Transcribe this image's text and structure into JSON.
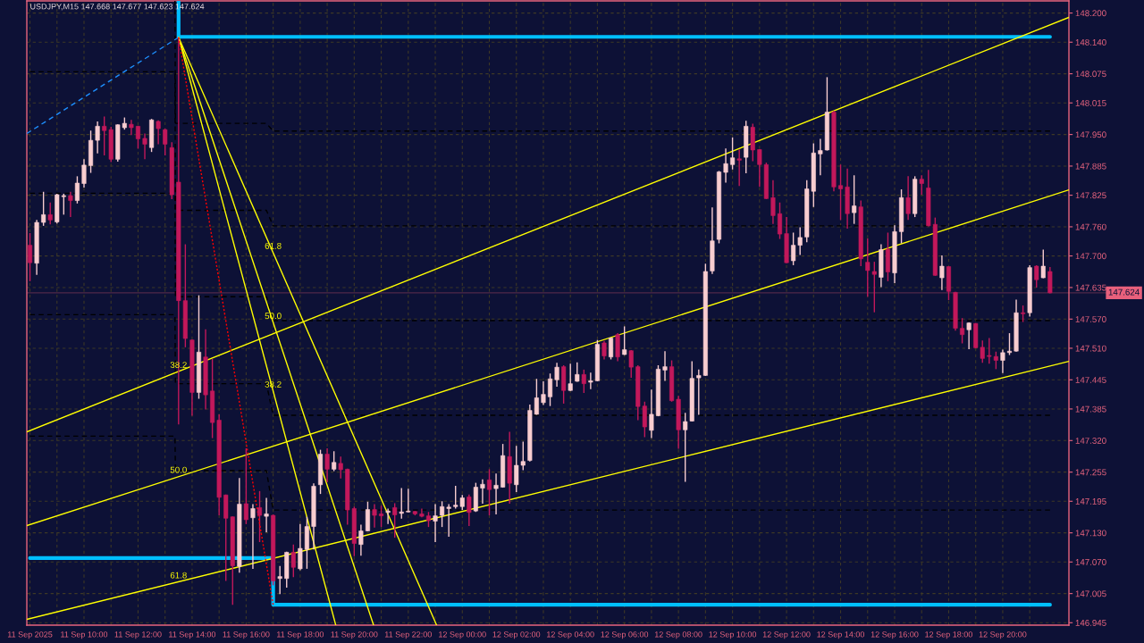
{
  "chart_data": {
    "type": "candlestick",
    "title": "USDJPY,M15 147.668 147.677 147.623 147.624",
    "x": [
      "2025-09-11T08:00",
      "2025-09-11T08:15",
      "2025-09-11T08:30",
      "2025-09-11T08:45",
      "2025-09-11T09:00",
      "2025-09-11T09:15",
      "2025-09-11T09:30",
      "2025-09-11T09:45",
      "2025-09-11T10:00",
      "2025-09-11T10:15",
      "2025-09-11T10:30",
      "2025-09-11T10:45",
      "2025-09-11T11:00",
      "2025-09-11T11:15",
      "2025-09-11T11:30",
      "2025-09-11T11:45",
      "2025-09-11T12:00",
      "2025-09-11T12:15",
      "2025-09-11T12:30",
      "2025-09-11T12:45",
      "2025-09-11T13:00",
      "2025-09-11T13:15",
      "2025-09-11T13:30",
      "2025-09-11T13:45",
      "2025-09-11T14:00",
      "2025-09-11T14:15",
      "2025-09-11T14:30",
      "2025-09-11T14:45",
      "2025-09-11T15:00",
      "2025-09-11T15:15",
      "2025-09-11T15:30",
      "2025-09-11T15:45",
      "2025-09-11T16:00",
      "2025-09-11T16:15",
      "2025-09-11T16:30",
      "2025-09-11T16:45",
      "2025-09-11T17:00",
      "2025-09-11T17:15",
      "2025-09-11T17:30",
      "2025-09-11T17:45",
      "2025-09-11T18:00",
      "2025-09-11T18:15",
      "2025-09-11T18:30",
      "2025-09-11T18:45",
      "2025-09-11T19:00",
      "2025-09-11T19:15",
      "2025-09-11T19:30",
      "2025-09-11T19:45",
      "2025-09-11T20:00",
      "2025-09-11T20:15",
      "2025-09-11T20:30",
      "2025-09-11T20:45",
      "2025-09-11T21:00",
      "2025-09-11T21:15",
      "2025-09-11T21:30",
      "2025-09-11T21:45",
      "2025-09-11T22:00",
      "2025-09-11T22:15",
      "2025-09-11T22:30",
      "2025-09-11T22:45",
      "2025-09-11T23:00",
      "2025-09-11T23:15",
      "2025-09-11T23:30",
      "2025-09-11T23:45",
      "2025-09-12T00:00",
      "2025-09-12T00:15",
      "2025-09-12T00:30",
      "2025-09-12T00:45",
      "2025-09-12T01:00",
      "2025-09-12T01:15",
      "2025-09-12T01:30",
      "2025-09-12T01:45",
      "2025-09-12T02:00",
      "2025-09-12T02:15",
      "2025-09-12T02:30",
      "2025-09-12T02:45",
      "2025-09-12T03:00",
      "2025-09-12T03:15",
      "2025-09-12T03:30",
      "2025-09-12T03:45",
      "2025-09-12T04:00",
      "2025-09-12T04:15",
      "2025-09-12T04:30",
      "2025-09-12T04:45",
      "2025-09-12T05:00",
      "2025-09-12T05:15",
      "2025-09-12T05:30",
      "2025-09-12T05:45",
      "2025-09-12T06:00",
      "2025-09-12T06:15",
      "2025-09-12T06:30",
      "2025-09-12T06:45",
      "2025-09-12T07:00",
      "2025-09-12T07:15",
      "2025-09-12T07:30",
      "2025-09-12T07:45",
      "2025-09-12T08:00",
      "2025-09-12T08:15",
      "2025-09-12T08:30",
      "2025-09-12T08:45",
      "2025-09-12T09:00",
      "2025-09-12T09:15",
      "2025-09-12T09:30",
      "2025-09-12T09:45",
      "2025-09-12T10:00",
      "2025-09-12T10:15",
      "2025-09-12T10:30",
      "2025-09-12T10:45",
      "2025-09-12T11:00",
      "2025-09-12T11:15",
      "2025-09-12T11:30",
      "2025-09-12T11:45",
      "2025-09-12T12:00",
      "2025-09-12T12:15",
      "2025-09-12T12:30",
      "2025-09-12T12:45",
      "2025-09-12T13:00",
      "2025-09-12T13:15",
      "2025-09-12T13:30",
      "2025-09-12T13:45",
      "2025-09-12T14:00",
      "2025-09-12T14:15",
      "2025-09-12T14:30",
      "2025-09-12T14:45",
      "2025-09-12T15:00",
      "2025-09-12T15:15",
      "2025-09-12T15:30",
      "2025-09-12T15:45",
      "2025-09-12T16:00",
      "2025-09-12T16:15",
      "2025-09-12T16:30",
      "2025-09-12T16:45",
      "2025-09-12T17:00",
      "2025-09-12T17:15",
      "2025-09-12T17:30",
      "2025-09-12T17:45",
      "2025-09-12T18:00",
      "2025-09-12T18:15",
      "2025-09-12T18:30",
      "2025-09-12T18:45",
      "2025-09-12T19:00",
      "2025-09-12T19:15",
      "2025-09-12T19:30",
      "2025-09-12T19:45",
      "2025-09-12T20:00",
      "2025-09-12T20:15",
      "2025-09-12T20:30",
      "2025-09-12T20:45",
      "2025-09-12T21:00",
      "2025-09-12T21:15",
      "2025-09-12T21:30",
      "2025-09-12T21:45"
    ],
    "ohlc": [
      [
        147.722,
        147.747,
        147.648,
        147.686
      ],
      [
        147.685,
        147.774,
        147.661,
        147.769
      ],
      [
        147.769,
        147.832,
        147.762,
        147.785
      ],
      [
        147.785,
        147.81,
        147.765,
        147.774
      ],
      [
        147.77,
        147.828,
        147.767,
        147.826
      ],
      [
        147.822,
        147.828,
        147.785,
        147.824
      ],
      [
        147.824,
        147.832,
        147.78,
        147.814
      ],
      [
        147.814,
        147.864,
        147.808,
        147.85
      ],
      [
        147.849,
        147.899,
        147.841,
        147.887
      ],
      [
        147.886,
        147.958,
        147.871,
        147.938
      ],
      [
        147.938,
        147.977,
        147.911,
        147.967
      ],
      [
        147.967,
        147.987,
        147.907,
        147.958
      ],
      [
        147.96,
        147.966,
        147.893,
        147.899
      ],
      [
        147.899,
        147.971,
        147.894,
        147.97
      ],
      [
        147.964,
        147.985,
        147.96,
        147.973
      ],
      [
        147.971,
        147.98,
        147.949,
        147.964
      ],
      [
        147.967,
        147.968,
        147.921,
        147.941
      ],
      [
        147.942,
        147.952,
        147.899,
        147.93
      ],
      [
        147.923,
        147.982,
        147.914,
        147.98
      ],
      [
        147.977,
        147.979,
        147.93,
        147.962
      ],
      [
        147.96,
        147.962,
        147.907,
        147.93
      ],
      [
        147.923,
        147.934,
        147.817,
        147.826
      ],
      [
        147.852,
        148.15,
        147.353,
        147.608
      ],
      [
        147.608,
        147.724,
        147.512,
        147.53
      ],
      [
        147.527,
        147.528,
        147.371,
        147.419
      ],
      [
        147.419,
        147.619,
        147.406,
        147.502
      ],
      [
        147.492,
        147.549,
        147.384,
        147.414
      ],
      [
        147.422,
        147.488,
        147.325,
        147.357
      ],
      [
        147.362,
        147.374,
        147.166,
        147.203
      ],
      [
        147.208,
        147.209,
        147.031,
        147.16
      ],
      [
        147.163,
        147.164,
        146.982,
        147.062
      ],
      [
        147.061,
        147.243,
        147.048,
        147.189
      ],
      [
        147.19,
        147.304,
        147.148,
        147.157
      ],
      [
        147.161,
        147.189,
        147.056,
        147.18
      ],
      [
        147.182,
        147.216,
        147.111,
        147.166
      ],
      [
        147.164,
        147.202,
        147.131,
        147.169
      ],
      [
        147.166,
        147.168,
        147.022,
        147.031
      ],
      [
        147.036,
        147.062,
        147.004,
        147.04
      ],
      [
        147.036,
        147.091,
        147.017,
        147.09
      ],
      [
        147.09,
        147.106,
        147.039,
        147.059
      ],
      [
        147.056,
        147.148,
        147.053,
        147.098
      ],
      [
        147.096,
        147.163,
        147.056,
        147.143
      ],
      [
        147.143,
        147.232,
        147.096,
        147.226
      ],
      [
        147.229,
        147.301,
        147.21,
        147.292
      ],
      [
        147.292,
        147.304,
        147.234,
        147.261
      ],
      [
        147.261,
        147.298,
        147.257,
        147.275
      ],
      [
        147.273,
        147.287,
        147.242,
        147.26
      ],
      [
        147.261,
        147.262,
        147.147,
        147.177
      ],
      [
        147.18,
        147.184,
        147.082,
        147.108
      ],
      [
        147.106,
        147.147,
        147.083,
        147.134
      ],
      [
        147.134,
        147.194,
        147.133,
        147.178
      ],
      [
        147.178,
        147.189,
        147.141,
        147.166
      ],
      [
        147.169,
        147.186,
        147.142,
        147.165
      ],
      [
        147.172,
        147.18,
        147.148,
        147.175
      ],
      [
        147.182,
        147.191,
        147.12,
        147.167
      ],
      [
        147.17,
        147.222,
        147.159,
        147.173
      ],
      [
        147.173,
        147.221,
        147.172,
        147.174
      ],
      [
        147.174,
        147.175,
        147.166,
        147.169
      ],
      [
        147.169,
        147.18,
        147.162,
        147.164
      ],
      [
        147.165,
        147.173,
        147.142,
        147.155
      ],
      [
        147.154,
        147.189,
        147.111,
        147.165
      ],
      [
        147.166,
        147.195,
        147.142,
        147.184
      ],
      [
        147.18,
        147.189,
        147.122,
        147.183
      ],
      [
        147.184,
        147.227,
        147.18,
        147.187
      ],
      [
        147.184,
        147.208,
        147.177,
        147.202
      ],
      [
        147.204,
        147.209,
        147.144,
        147.172
      ],
      [
        147.175,
        147.233,
        147.173,
        147.224
      ],
      [
        147.222,
        147.24,
        147.19,
        147.23
      ],
      [
        147.239,
        147.261,
        147.166,
        147.219
      ],
      [
        147.221,
        147.252,
        147.168,
        147.228
      ],
      [
        147.224,
        147.313,
        147.223,
        147.289
      ],
      [
        147.287,
        147.338,
        147.19,
        147.232
      ],
      [
        147.229,
        147.309,
        147.214,
        147.269
      ],
      [
        147.269,
        147.318,
        147.259,
        147.277
      ],
      [
        147.279,
        147.394,
        147.277,
        147.382
      ],
      [
        147.374,
        147.447,
        147.373,
        147.408
      ],
      [
        147.398,
        147.442,
        147.393,
        147.415
      ],
      [
        147.41,
        147.458,
        147.391,
        147.447
      ],
      [
        147.445,
        147.48,
        147.431,
        147.471
      ],
      [
        147.472,
        147.475,
        147.396,
        147.423
      ],
      [
        147.423,
        147.478,
        147.422,
        147.437
      ],
      [
        147.442,
        147.481,
        147.441,
        147.456
      ],
      [
        147.456,
        147.466,
        147.418,
        147.437
      ],
      [
        147.44,
        147.46,
        147.426,
        147.443
      ],
      [
        147.443,
        147.527,
        147.442,
        147.518
      ],
      [
        147.521,
        147.525,
        147.487,
        147.494
      ],
      [
        147.492,
        147.532,
        147.487,
        147.531
      ],
      [
        147.538,
        147.541,
        147.483,
        147.492
      ],
      [
        147.497,
        147.555,
        147.496,
        147.507
      ],
      [
        147.505,
        147.506,
        147.449,
        147.471
      ],
      [
        147.472,
        147.475,
        147.362,
        147.39
      ],
      [
        147.391,
        147.4,
        147.327,
        147.348
      ],
      [
        147.341,
        147.425,
        147.325,
        147.374
      ],
      [
        147.371,
        147.475,
        147.37,
        147.467
      ],
      [
        147.465,
        147.504,
        147.443,
        147.472
      ],
      [
        147.472,
        147.485,
        147.4,
        147.402
      ],
      [
        147.405,
        147.412,
        147.303,
        147.342
      ],
      [
        147.342,
        147.377,
        147.235,
        147.359
      ],
      [
        147.36,
        147.483,
        147.359,
        147.448
      ],
      [
        147.449,
        147.466,
        147.373,
        147.454
      ],
      [
        147.454,
        147.684,
        147.453,
        147.668
      ],
      [
        147.669,
        147.8,
        147.663,
        147.731
      ],
      [
        147.734,
        147.875,
        147.726,
        147.873
      ],
      [
        147.872,
        147.921,
        147.851,
        147.89
      ],
      [
        147.888,
        147.944,
        147.878,
        147.902
      ],
      [
        147.9,
        147.919,
        147.844,
        147.897
      ],
      [
        147.903,
        147.978,
        147.87,
        147.967
      ],
      [
        147.965,
        147.972,
        147.895,
        147.918
      ],
      [
        147.919,
        147.92,
        147.842,
        147.888
      ],
      [
        147.888,
        147.892,
        147.817,
        147.818
      ],
      [
        147.82,
        147.856,
        147.766,
        147.783
      ],
      [
        147.787,
        147.81,
        147.735,
        147.745
      ],
      [
        147.746,
        147.78,
        147.685,
        147.686
      ],
      [
        147.69,
        147.748,
        147.681,
        147.722
      ],
      [
        147.722,
        147.759,
        147.702,
        147.738
      ],
      [
        147.739,
        147.856,
        147.728,
        147.838
      ],
      [
        147.833,
        147.932,
        147.801,
        147.912
      ],
      [
        147.91,
        147.941,
        147.866,
        147.917
      ],
      [
        147.918,
        148.068,
        147.917,
        147.996
      ],
      [
        147.996,
        147.999,
        147.833,
        147.842
      ],
      [
        147.845,
        147.888,
        147.774,
        147.838
      ],
      [
        147.842,
        147.88,
        147.756,
        147.787
      ],
      [
        147.789,
        147.866,
        147.766,
        147.803
      ],
      [
        147.801,
        147.814,
        147.679,
        147.694
      ],
      [
        147.687,
        147.736,
        147.616,
        147.67
      ],
      [
        147.668,
        147.688,
        147.584,
        147.662
      ],
      [
        147.656,
        147.724,
        147.636,
        147.713
      ],
      [
        147.714,
        147.748,
        147.648,
        147.667
      ],
      [
        147.665,
        147.763,
        147.644,
        147.75
      ],
      [
        147.75,
        147.837,
        147.726,
        147.82
      ],
      [
        147.82,
        147.864,
        147.774,
        147.787
      ],
      [
        147.787,
        147.864,
        147.78,
        147.858
      ],
      [
        147.858,
        147.866,
        147.826,
        147.849
      ],
      [
        147.84,
        147.877,
        147.761,
        147.762
      ],
      [
        147.765,
        147.779,
        147.659,
        147.66
      ],
      [
        147.655,
        147.701,
        147.63,
        147.679
      ],
      [
        147.678,
        147.679,
        147.609,
        147.627
      ],
      [
        147.625,
        147.626,
        147.546,
        147.551
      ],
      [
        147.551,
        147.572,
        147.52,
        147.538
      ],
      [
        147.548,
        147.563,
        147.508,
        147.562
      ],
      [
        147.561,
        147.562,
        147.51,
        147.511
      ],
      [
        147.512,
        147.526,
        147.48,
        147.489
      ],
      [
        147.495,
        147.531,
        147.478,
        147.493
      ],
      [
        147.493,
        147.503,
        147.467,
        147.485
      ],
      [
        147.485,
        147.507,
        147.459,
        147.501
      ],
      [
        147.501,
        147.541,
        147.496,
        147.504
      ],
      [
        147.504,
        147.61,
        147.503,
        147.583
      ],
      [
        147.583,
        147.598,
        147.564,
        147.581
      ],
      [
        147.583,
        147.681,
        147.575,
        147.676
      ],
      [
        147.679,
        147.681,
        147.635,
        147.651
      ],
      [
        147.655,
        147.713,
        147.654,
        147.679
      ],
      [
        147.668,
        147.677,
        147.623,
        147.624
      ]
    ],
    "colors": [
      "#c2185b",
      "#f8cdd0",
      "#f8cdd0",
      "#c2185b",
      "#f8cdd0",
      "#f8cdd0",
      "#c2185b",
      "#f8cdd0",
      "#f8cdd0",
      "#f8cdd0",
      "#f8cdd0",
      "#c2185b",
      "#c2185b",
      "#f8cdd0",
      "#f8cdd0",
      "#c2185b",
      "#c2185b",
      "#c2185b",
      "#f8cdd0",
      "#c2185b",
      "#c2185b",
      "#c2185b",
      "#c2185b",
      "#c2185b",
      "#c2185b",
      "#f8cdd0",
      "#c2185b",
      "#c2185b",
      "#c2185b",
      "#c2185b",
      "#c2185b",
      "#f8cdd0",
      "#c2185b",
      "#f8cdd0",
      "#c2185b",
      "#f8cdd0",
      "#c2185b",
      "#f8cdd0",
      "#f8cdd0",
      "#c2185b",
      "#f8cdd0",
      "#f8cdd0",
      "#f8cdd0",
      "#f8cdd0",
      "#c2185b",
      "#f8cdd0",
      "#c2185b",
      "#c2185b",
      "#c2185b",
      "#f8cdd0",
      "#f8cdd0",
      "#c2185b",
      "#c2185b",
      "#f8cdd0",
      "#c2185b",
      "#f8cdd0",
      "#f8cdd0",
      "#c2185b",
      "#c2185b",
      "#c2185b",
      "#f8cdd0",
      "#f8cdd0",
      "#f8cdd0",
      "#f8cdd0",
      "#f8cdd0",
      "#c2185b",
      "#f8cdd0",
      "#f8cdd0",
      "#c2185b",
      "#f8cdd0",
      "#f8cdd0",
      "#c2185b",
      "#f8cdd0",
      "#f8cdd0",
      "#f8cdd0",
      "#f8cdd0",
      "#f8cdd0",
      "#f8cdd0",
      "#f8cdd0",
      "#c2185b",
      "#f8cdd0",
      "#f8cdd0",
      "#c2185b",
      "#f8cdd0",
      "#f8cdd0",
      "#c2185b",
      "#f8cdd0",
      "#c2185b",
      "#f8cdd0",
      "#c2185b",
      "#c2185b",
      "#c2185b",
      "#f8cdd0",
      "#f8cdd0",
      "#f8cdd0",
      "#c2185b",
      "#c2185b",
      "#f8cdd0",
      "#f8cdd0",
      "#f8cdd0",
      "#f8cdd0",
      "#f8cdd0",
      "#f8cdd0",
      "#f8cdd0",
      "#f8cdd0",
      "#c2185b",
      "#f8cdd0",
      "#c2185b",
      "#c2185b",
      "#c2185b",
      "#c2185b",
      "#c2185b",
      "#c2185b",
      "#f8cdd0",
      "#f8cdd0",
      "#f8cdd0",
      "#f8cdd0",
      "#f8cdd0",
      "#f8cdd0",
      "#c2185b",
      "#c2185b",
      "#c2185b",
      "#f8cdd0",
      "#c2185b",
      "#c2185b",
      "#c2185b",
      "#f8cdd0",
      "#c2185b",
      "#f8cdd0",
      "#f8cdd0",
      "#c2185b",
      "#f8cdd0",
      "#c2185b",
      "#c2185b",
      "#c2185b",
      "#f8cdd0",
      "#c2185b",
      "#c2185b",
      "#c2185b",
      "#f8cdd0",
      "#c2185b",
      "#c2185b",
      "#c2185b",
      "#c2185b",
      "#f8cdd0",
      "#f8cdd0",
      "#f8cdd0",
      "#c2185b",
      "#f8cdd0",
      "#c2185b",
      "#f8cdd0",
      "#c2185b"
    ],
    "series": [
      {
        "type": "step",
        "color": "#00bfff",
        "line_style": "solid",
        "x": [
          "2025-09-11T13:30",
          "2025-09-11T13:30",
          "2025-09-12T21:45"
        ],
        "values": [
          148.225,
          148.151,
          148.151
        ]
      },
      {
        "type": "step",
        "color": "#00bfff",
        "line_style": "solid",
        "x": [
          "2025-09-11T08:00",
          "2025-09-11T17:00",
          "2025-09-12T21:45"
        ],
        "values": [
          147.078,
          146.982,
          146.982
        ]
      },
      {
        "type": "line",
        "color": "#000000",
        "line_style": "dashed",
        "x": [
          "2025-09-11T08:00",
          "2025-09-11T13:22",
          "2025-09-11T13:23",
          "2025-09-11T16:45",
          "2025-09-11T17:00",
          "2025-09-12T21:45"
        ],
        "values": [
          147.329,
          147.329,
          147.258,
          147.258,
          147.177,
          147.177
        ]
      },
      {
        "type": "line",
        "color": "#000000",
        "line_style": "dashed",
        "x": [
          "2025-09-11T08:00",
          "2025-09-11T13:22",
          "2025-09-11T13:23",
          "2025-09-11T16:45",
          "2025-09-11T17:00",
          "2025-09-12T21:45"
        ],
        "values": [
          147.579,
          147.579,
          147.437,
          147.437,
          147.372,
          147.372
        ]
      },
      {
        "type": "line",
        "color": "#000000",
        "line_style": "dashed",
        "x": [
          "2025-09-11T08:00",
          "2025-09-11T13:22",
          "2025-09-11T13:23",
          "2025-09-11T16:45",
          "2025-09-11T17:00",
          "2025-09-12T21:45"
        ],
        "values": [
          147.829,
          147.829,
          147.616,
          147.616,
          147.567,
          147.567
        ]
      },
      {
        "type": "line",
        "color": "#000000",
        "line_style": "dashed",
        "x": [
          "2025-09-11T08:00",
          "2025-09-11T13:22",
          "2025-09-11T13:23",
          "2025-09-11T16:45",
          "2025-09-11T17:00",
          "2025-09-12T21:45"
        ],
        "values": [
          148.079,
          148.079,
          147.794,
          147.794,
          147.762,
          147.762
        ]
      },
      {
        "type": "line",
        "color": "#000000",
        "line_style": "dashed",
        "x": [
          "2025-09-11T13:22",
          "2025-09-11T13:23",
          "2025-09-11T16:45",
          "2025-09-11T17:00",
          "2025-09-12T21:45"
        ],
        "values": [
          148.225,
          147.973,
          147.973,
          147.957,
          147.957
        ]
      },
      {
        "type": "line",
        "color": "#1e90ff",
        "line_style": "dashed",
        "x": [
          "2025-09-11T07:53",
          "2025-09-11T13:30"
        ],
        "values": [
          147.952,
          148.15
        ]
      },
      {
        "type": "line",
        "color": "#ffff00",
        "line_style": "solid",
        "x": [
          "2025-09-11T07:53",
          "2025-09-12T22:27"
        ],
        "values": [
          147.338,
          148.191
        ]
      },
      {
        "type": "line",
        "color": "#ffff00",
        "line_style": "solid",
        "x": [
          "2025-09-11T07:53",
          "2025-09-12T22:27"
        ],
        "values": [
          147.145,
          147.836
        ]
      },
      {
        "type": "line",
        "color": "#ffff00",
        "line_style": "solid",
        "x": [
          "2025-09-11T07:53",
          "2025-09-12T22:27"
        ],
        "values": [
          146.952,
          147.483
        ]
      },
      {
        "type": "line",
        "color": "#ffff00",
        "line_style": "solid",
        "x": [
          "2025-09-11T13:30",
          "2025-09-11T19:19"
        ],
        "values": [
          148.15,
          146.94
        ]
      },
      {
        "type": "line",
        "color": "#ffff00",
        "line_style": "solid",
        "x": [
          "2025-09-11T13:30",
          "2025-09-11T20:43"
        ],
        "values": [
          148.15,
          146.94
        ]
      },
      {
        "type": "line",
        "color": "#ffff00",
        "line_style": "solid",
        "x": [
          "2025-09-11T13:30",
          "2025-09-11T23:03"
        ],
        "values": [
          148.15,
          146.94
        ]
      },
      {
        "type": "line",
        "color": "#ff0000",
        "line_style": "dotted",
        "x": [
          "2025-09-11T13:30",
          "2025-09-11T17:00"
        ],
        "values": [
          148.15,
          146.982
        ]
      }
    ],
    "annotations": [
      {
        "text": "38.2",
        "x": "2025-09-11T13:30",
        "y": 147.462
      },
      {
        "text": "50.0",
        "x": "2025-09-11T13:30",
        "y": 147.246
      },
      {
        "text": "61.8",
        "x": "2025-09-11T13:30",
        "y": 147.029
      },
      {
        "text": "61.8",
        "x": "2025-09-11T17:00",
        "y": 147.707
      },
      {
        "text": "50.0",
        "x": "2025-09-11T17:00",
        "y": 147.563
      },
      {
        "text": "38.2",
        "x": "2025-09-11T17:00",
        "y": 147.422
      }
    ],
    "ref_lines": [
      {
        "axis": "y",
        "value": 147.624,
        "label": "147.624",
        "color": "#e8607c"
      }
    ],
    "xlim": [
      "2025-09-11T07:53",
      "2025-09-12T22:27"
    ],
    "xticks": [
      {
        "value": "2025-09-11T08:00",
        "label": "11 Sep 2025"
      },
      {
        "value": "2025-09-11T09:00",
        "label": null
      },
      {
        "value": "2025-09-11T10:00",
        "label": "11 Sep 10:00"
      },
      {
        "value": "2025-09-11T11:00",
        "label": null
      },
      {
        "value": "2025-09-11T12:00",
        "label": "11 Sep 12:00"
      },
      {
        "value": "2025-09-11T13:00",
        "label": null
      },
      {
        "value": "2025-09-11T14:00",
        "label": "11 Sep 14:00"
      },
      {
        "value": "2025-09-11T15:00",
        "label": null
      },
      {
        "value": "2025-09-11T16:00",
        "label": "11 Sep 16:00"
      },
      {
        "value": "2025-09-11T17:00",
        "label": null
      },
      {
        "value": "2025-09-11T18:00",
        "label": "11 Sep 18:00"
      },
      {
        "value": "2025-09-11T19:00",
        "label": null
      },
      {
        "value": "2025-09-11T20:00",
        "label": "11 Sep 20:00"
      },
      {
        "value": "2025-09-11T21:00",
        "label": null
      },
      {
        "value": "2025-09-11T22:00",
        "label": "11 Sep 22:00"
      },
      {
        "value": "2025-09-11T23:00",
        "label": null
      },
      {
        "value": "2025-09-12T00:00",
        "label": "12 Sep 00:00"
      },
      {
        "value": "2025-09-12T01:00",
        "label": null
      },
      {
        "value": "2025-09-12T02:00",
        "label": "12 Sep 02:00"
      },
      {
        "value": "2025-09-12T03:00",
        "label": null
      },
      {
        "value": "2025-09-12T04:00",
        "label": "12 Sep 04:00"
      },
      {
        "value": "2025-09-12T05:00",
        "label": null
      },
      {
        "value": "2025-09-12T06:00",
        "label": "12 Sep 06:00"
      },
      {
        "value": "2025-09-12T07:00",
        "label": null
      },
      {
        "value": "2025-09-12T08:00",
        "label": "12 Sep 08:00"
      },
      {
        "value": "2025-09-12T09:00",
        "label": null
      },
      {
        "value": "2025-09-12T10:00",
        "label": "12 Sep 10:00"
      },
      {
        "value": "2025-09-12T11:00",
        "label": null
      },
      {
        "value": "2025-09-12T12:00",
        "label": "12 Sep 12:00"
      },
      {
        "value": "2025-09-12T13:00",
        "label": null
      },
      {
        "value": "2025-09-12T14:00",
        "label": "12 Sep 14:00"
      },
      {
        "value": "2025-09-12T15:00",
        "label": null
      },
      {
        "value": "2025-09-12T16:00",
        "label": "12 Sep 16:00"
      },
      {
        "value": "2025-09-12T17:00",
        "label": null
      },
      {
        "value": "2025-09-12T18:00",
        "label": "12 Sep 18:00"
      },
      {
        "value": "2025-09-12T19:00",
        "label": null
      },
      {
        "value": "2025-09-12T20:00",
        "label": "12 Sep 20:00"
      },
      {
        "value": "2025-09-12T21:00",
        "label": null
      }
    ],
    "ylim": [
      146.94,
      148.225
    ],
    "yticks": [
      {
        "value": 148.2,
        "label": "148.200"
      },
      {
        "value": 148.14,
        "label": "148.140"
      },
      {
        "value": 148.075,
        "label": "148.075"
      },
      {
        "value": 148.015,
        "label": "148.015"
      },
      {
        "value": 147.95,
        "label": "147.950"
      },
      {
        "value": 147.885,
        "label": "147.885"
      },
      {
        "value": 147.825,
        "label": "147.825"
      },
      {
        "value": 147.76,
        "label": "147.760"
      },
      {
        "value": 147.7,
        "label": "147.700"
      },
      {
        "value": 147.635,
        "label": "147.635"
      },
      {
        "value": 147.57,
        "label": "147.570"
      },
      {
        "value": 147.51,
        "label": "147.510"
      },
      {
        "value": 147.445,
        "label": "147.445"
      },
      {
        "value": 147.385,
        "label": "147.385"
      },
      {
        "value": 147.32,
        "label": "147.320"
      },
      {
        "value": 147.255,
        "label": "147.255"
      },
      {
        "value": 147.195,
        "label": "147.195"
      },
      {
        "value": 147.13,
        "label": "147.130"
      },
      {
        "value": 147.07,
        "label": "147.070"
      },
      {
        "value": 147.005,
        "label": "147.005"
      },
      {
        "value": 146.945,
        "label": "146.945"
      }
    ],
    "grid": true
  }
}
